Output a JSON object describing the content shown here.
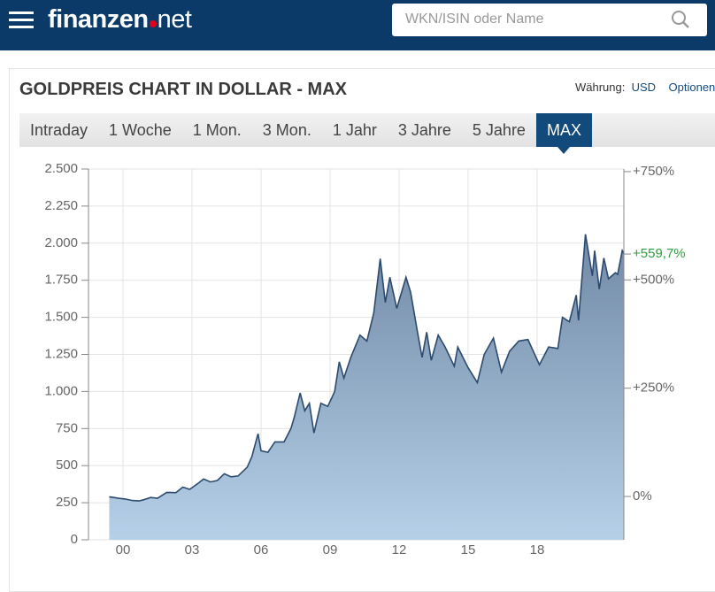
{
  "header": {
    "logo_word": "finanzen",
    "logo_suffix": "net",
    "search_placeholder": "WKN/ISIN oder Name"
  },
  "panel": {
    "title": "GOLDPREIS CHART IN DOLLAR - MAX",
    "currency_label": "Währung:",
    "currency": "USD",
    "options": "Optionen",
    "tabs": [
      "Intraday",
      "1 Woche",
      "1 Mon.",
      "3 Mon.",
      "1 Jahr",
      "3 Jahre",
      "5 Jahre",
      "MAX"
    ],
    "active_tab": 7
  },
  "chart_data": {
    "type": "area",
    "x": [
      1999.9,
      2000.1,
      2000.3,
      2000.6,
      2000.9,
      2001.2,
      2001.4,
      2001.7,
      2002.0,
      2002.4,
      2002.8,
      2003.1,
      2003.4,
      2003.8,
      2004.0,
      2004.3,
      2004.6,
      2004.9,
      2005.2,
      2005.5,
      2005.9,
      2006.1,
      2006.37,
      2006.5,
      2006.8,
      2007.1,
      2007.5,
      2007.8,
      2007.95,
      2008.2,
      2008.4,
      2008.6,
      2008.8,
      2009.1,
      2009.4,
      2009.7,
      2009.9,
      2010.1,
      2010.4,
      2010.8,
      2011.1,
      2011.4,
      2011.68,
      2011.9,
      2012.1,
      2012.4,
      2012.8,
      2013.0,
      2013.3,
      2013.5,
      2013.7,
      2013.9,
      2014.2,
      2014.5,
      2014.9,
      2015.05,
      2015.5,
      2015.9,
      2016.2,
      2016.6,
      2016.95,
      2017.3,
      2017.7,
      2018.1,
      2018.6,
      2019.0,
      2019.4,
      2019.6,
      2019.9,
      2020.2,
      2020.3,
      2020.6,
      2020.9,
      2021.0,
      2021.2,
      2021.4,
      2021.6,
      2021.9,
      2022.0,
      2022.2,
      2022.27
    ],
    "series": [
      {
        "name": "Goldpreis",
        "color": "#2b4a6e",
        "values": [
          290,
          285,
          280,
          275,
          265,
          262,
          270,
          285,
          280,
          320,
          318,
          355,
          340,
          385,
          410,
          390,
          400,
          445,
          425,
          430,
          490,
          560,
          715,
          600,
          590,
          660,
          660,
          750,
          830,
          990,
          870,
          920,
          720,
          920,
          900,
          1000,
          1200,
          1090,
          1230,
          1380,
          1340,
          1530,
          1895,
          1600,
          1770,
          1560,
          1770,
          1670,
          1400,
          1230,
          1400,
          1210,
          1380,
          1300,
          1170,
          1300,
          1160,
          1060,
          1250,
          1360,
          1130,
          1270,
          1340,
          1350,
          1180,
          1300,
          1290,
          1500,
          1470,
          1650,
          1480,
          2060,
          1780,
          1950,
          1690,
          1900,
          1760,
          1800,
          1790,
          1950,
          1930
        ]
      }
    ],
    "xlim": [
      1999.0,
      2022.27
    ],
    "xticks": [
      {
        "value": 2000.5,
        "label": "00"
      },
      {
        "value": 2003.5,
        "label": "03"
      },
      {
        "value": 2006.5,
        "label": "06"
      },
      {
        "value": 2009.5,
        "label": "09"
      },
      {
        "value": 2012.5,
        "label": "12"
      },
      {
        "value": 2015.5,
        "label": "15"
      },
      {
        "value": 2018.5,
        "label": "18"
      }
    ],
    "ylim": [
      0,
      2500
    ],
    "yticks": [
      0,
      250,
      500,
      750,
      {
        "value": 1000,
        "label": "1.000"
      },
      {
        "value": 1250,
        "label": "1.250"
      },
      {
        "value": 1500,
        "label": "1.500"
      },
      {
        "value": 1750,
        "label": "1.750"
      },
      {
        "value": 2000,
        "label": "2.000"
      },
      {
        "value": 2250,
        "label": "2.250"
      },
      {
        "value": 2500,
        "label": "2.500"
      }
    ],
    "y2lim": [
      -100,
      756
    ],
    "y2ticks": [
      {
        "value": 0,
        "label": "0%"
      },
      {
        "value": 250,
        "label": "+250%"
      },
      {
        "value": 500,
        "label": "+500%"
      },
      {
        "value": 750,
        "label": "+750%"
      }
    ],
    "annotation": {
      "text": "+559,7%",
      "value": 559.7,
      "color": "#2e9e3e"
    },
    "grid": true
  }
}
